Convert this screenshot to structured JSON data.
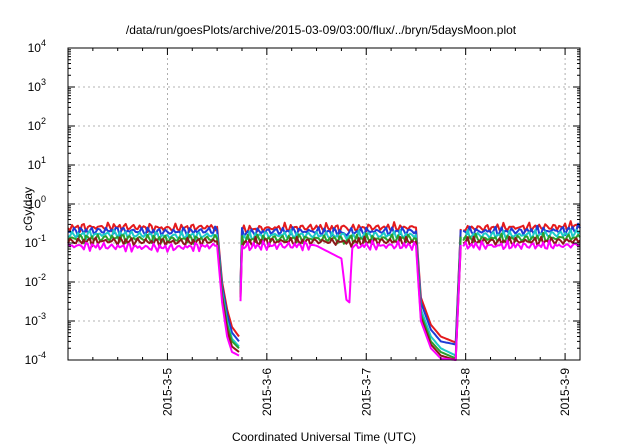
{
  "chart_data": {
    "type": "line",
    "title": "/data/run/goesPlots/archive/2015-03-09/03:00/flux/../bryn/5daysMoon.plot",
    "xlabel": "Coordinated Universal Time (UTC)",
    "ylabel": "cGy/day",
    "yscale": "log",
    "ylim": [
      0.0001,
      10000
    ],
    "xlim": [
      4.0,
      9.15
    ],
    "grid": true,
    "legend": "none",
    "x_ticks": [
      {
        "value": 5,
        "label": "2015-3-5"
      },
      {
        "value": 6,
        "label": "2015-3-6"
      },
      {
        "value": 7,
        "label": "2015-3-7"
      },
      {
        "value": 8,
        "label": "2015-3-8"
      },
      {
        "value": 9,
        "label": "2015-3-9"
      }
    ],
    "y_ticks": [
      {
        "value": 0.0001,
        "base": "10",
        "exp": "-4"
      },
      {
        "value": 0.001,
        "base": "10",
        "exp": "-3"
      },
      {
        "value": 0.01,
        "base": "10",
        "exp": "-2"
      },
      {
        "value": 0.1,
        "base": "10",
        "exp": "-1"
      },
      {
        "value": 1,
        "base": "10",
        "exp": "0"
      },
      {
        "value": 10,
        "base": "10",
        "exp": "1"
      },
      {
        "value": 100,
        "base": "10",
        "exp": "2"
      },
      {
        "value": 1000,
        "base": "10",
        "exp": "3"
      },
      {
        "value": 10000,
        "base": "10",
        "exp": "4"
      }
    ],
    "gaps": [
      [
        5.72,
        5.7
      ],
      [
        7.95,
        7.9
      ]
    ],
    "series": [
      {
        "color": "#e41a1c",
        "level": 0.25,
        "x": [
          4.0,
          4.5,
          5.0,
          5.5,
          5.55,
          5.6,
          5.65,
          5.72,
          5.75,
          6.0,
          6.5,
          6.75,
          6.8,
          6.85,
          7.0,
          7.5,
          7.55,
          7.65,
          7.75,
          7.9,
          7.95,
          8.0,
          8.5,
          9.0,
          9.15
        ],
        "y": [
          0.25,
          0.26,
          0.24,
          0.26,
          0.01,
          0.002,
          0.0007,
          0.0004,
          0.22,
          0.24,
          0.25,
          0.24,
          0.23,
          0.24,
          0.25,
          0.25,
          0.004,
          0.0008,
          0.0004,
          0.00028,
          0.22,
          0.24,
          0.25,
          0.26,
          0.3
        ]
      },
      {
        "color": "#1f3bd6",
        "level": 0.2,
        "x": [
          4.0,
          4.5,
          5.0,
          5.5,
          5.55,
          5.6,
          5.65,
          5.72,
          5.75,
          6.0,
          6.5,
          6.75,
          6.8,
          6.85,
          7.0,
          7.5,
          7.55,
          7.65,
          7.75,
          7.9,
          7.95,
          8.0,
          8.5,
          9.0,
          9.15
        ],
        "y": [
          0.2,
          0.21,
          0.19,
          0.21,
          0.008,
          0.0015,
          0.0005,
          0.0003,
          0.18,
          0.2,
          0.2,
          0.19,
          0.18,
          0.19,
          0.2,
          0.2,
          0.003,
          0.0006,
          0.0003,
          0.00025,
          0.18,
          0.2,
          0.2,
          0.21,
          0.24
        ]
      },
      {
        "color": "#1cc9c9",
        "level": 0.16,
        "x": [
          4.0,
          4.5,
          5.0,
          5.5,
          5.55,
          5.6,
          5.65,
          5.72,
          5.75,
          6.0,
          6.5,
          6.75,
          6.8,
          6.85,
          7.0,
          7.5,
          7.55,
          7.65,
          7.75,
          7.9,
          7.95,
          8.0,
          8.5,
          9.0,
          9.15
        ],
        "y": [
          0.16,
          0.17,
          0.15,
          0.16,
          0.006,
          0.001,
          0.00035,
          0.00022,
          0.14,
          0.16,
          0.16,
          0.15,
          0.14,
          0.15,
          0.16,
          0.16,
          0.002,
          0.0004,
          0.0002,
          0.00013,
          0.14,
          0.16,
          0.16,
          0.17,
          0.19
        ]
      },
      {
        "color": "#2ca02c",
        "level": 0.13,
        "x": [
          4.0,
          4.5,
          5.0,
          5.5,
          5.55,
          5.6,
          5.65,
          5.72,
          5.75,
          6.0,
          6.5,
          6.75,
          6.8,
          6.85,
          7.0,
          7.5,
          7.55,
          7.65,
          7.75,
          7.9,
          7.95,
          8.0,
          8.5,
          9.0,
          9.15
        ],
        "y": [
          0.13,
          0.135,
          0.125,
          0.13,
          0.005,
          0.0008,
          0.0003,
          0.0002,
          0.12,
          0.13,
          0.13,
          0.125,
          0.12,
          0.125,
          0.13,
          0.13,
          0.0015,
          0.0003,
          0.00016,
          0.00011,
          0.12,
          0.13,
          0.13,
          0.135,
          0.14
        ]
      },
      {
        "color": "#8b1a1a",
        "level": 0.11,
        "x": [
          4.0,
          4.5,
          5.0,
          5.5,
          5.55,
          5.6,
          5.65,
          5.72,
          5.75,
          6.0,
          6.5,
          6.75,
          6.8,
          6.85,
          7.0,
          7.5,
          7.55,
          7.65,
          7.75,
          7.9,
          7.95,
          8.0,
          8.5,
          9.0,
          9.15
        ],
        "y": [
          0.11,
          0.112,
          0.105,
          0.11,
          0.004,
          0.0006,
          0.00022,
          0.00016,
          0.1,
          0.11,
          0.11,
          0.105,
          0.1,
          0.105,
          0.11,
          0.11,
          0.0012,
          0.00025,
          0.00013,
          0.0001,
          0.1,
          0.11,
          0.11,
          0.112,
          0.115
        ]
      },
      {
        "color": "#ff00ff",
        "level": 0.085,
        "x": [
          4.0,
          4.5,
          5.0,
          5.5,
          5.55,
          5.6,
          5.65,
          5.72,
          5.75,
          6.0,
          6.5,
          6.75,
          6.8,
          6.83,
          6.86,
          7.0,
          7.5,
          7.55,
          7.65,
          7.75,
          7.9,
          7.95,
          8.0,
          8.5,
          9.0,
          9.15
        ],
        "y": [
          0.085,
          0.08,
          0.075,
          0.085,
          0.003,
          0.0004,
          0.00016,
          0.00013,
          0.08,
          0.085,
          0.085,
          0.04,
          0.0035,
          0.003,
          0.08,
          0.085,
          0.085,
          0.001,
          0.0002,
          0.00011,
          0.0001,
          0.08,
          0.085,
          0.085,
          0.085,
          0.09
        ]
      }
    ]
  }
}
